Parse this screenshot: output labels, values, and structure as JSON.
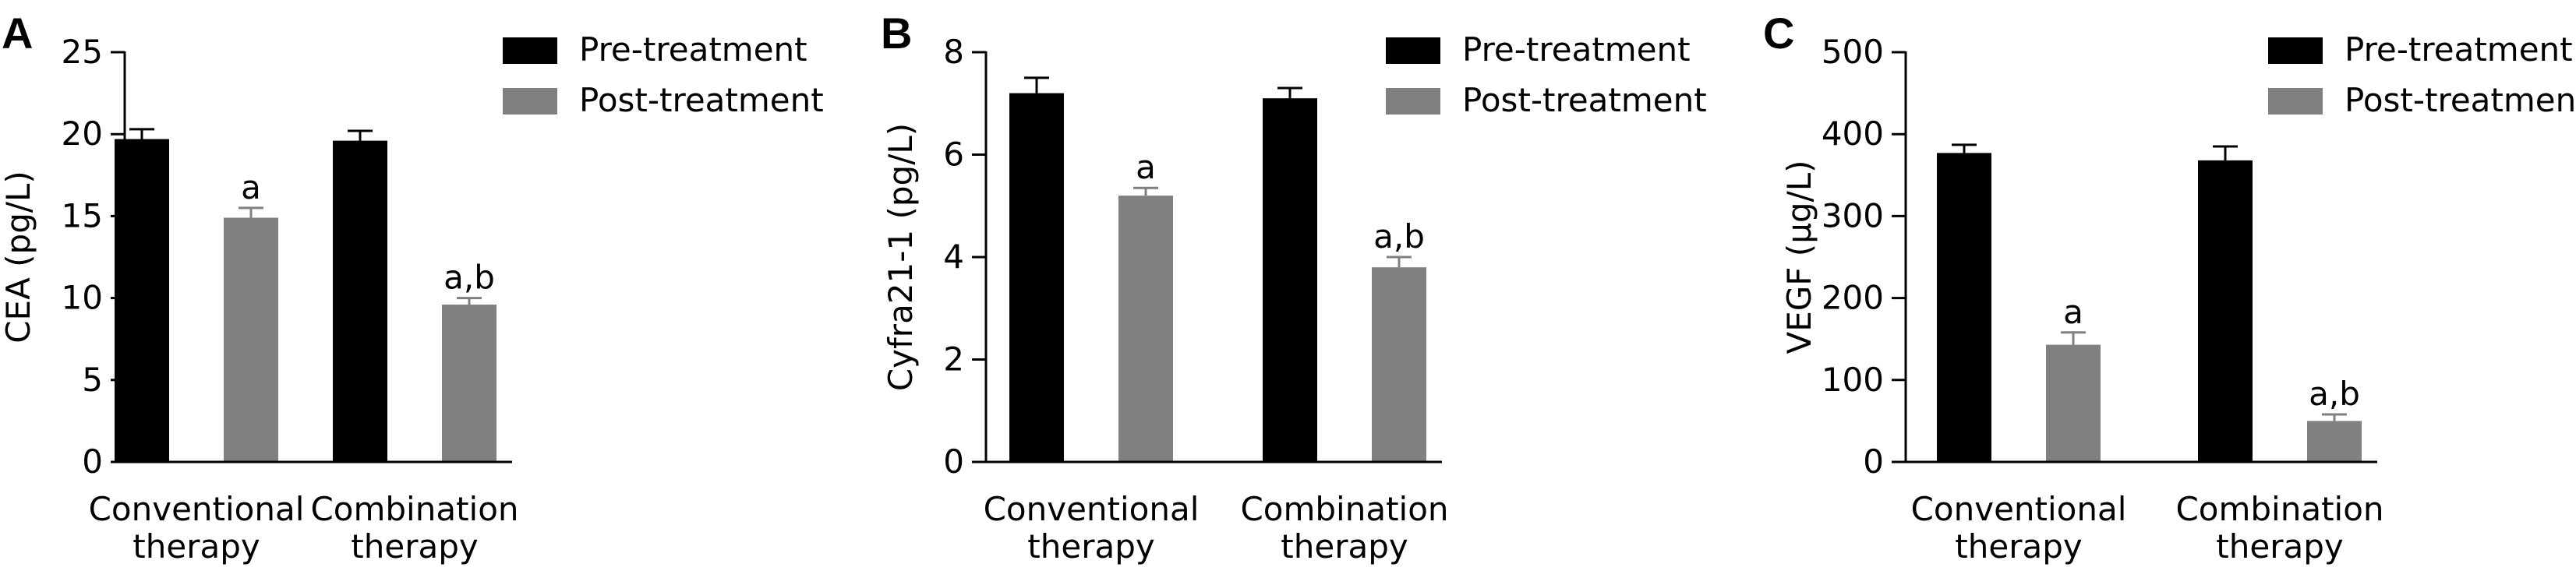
{
  "chart_data": [
    {
      "panel": "A",
      "type": "bar",
      "ylabel": "CEA (pg/L)",
      "ylim": [
        0,
        25
      ],
      "yticks": [
        "0",
        "5",
        "10",
        "15",
        "20",
        "25"
      ],
      "categories": [
        [
          "Conventional",
          "therapy"
        ],
        [
          "Combination",
          "therapy"
        ]
      ],
      "series": [
        {
          "name": "Pre-treatment",
          "color": "#000000",
          "values": [
            19.7,
            19.6
          ],
          "errors": [
            0.6,
            0.6
          ]
        },
        {
          "name": "Post-treatment",
          "color": "#808080",
          "values": [
            14.9,
            9.6
          ],
          "errors": [
            0.6,
            0.4
          ]
        }
      ],
      "annotations": [
        [
          "",
          "a"
        ],
        [
          "",
          "a,b"
        ]
      ],
      "legend": "top-right",
      "grid": false
    },
    {
      "panel": "B",
      "type": "bar",
      "ylabel": "Cyfra21-1 (pg/L)",
      "ylim": [
        0,
        8
      ],
      "yticks": [
        "0",
        "2",
        "4",
        "6",
        "8"
      ],
      "categories": [
        [
          "Conventional",
          "therapy"
        ],
        [
          "Combination",
          "therapy"
        ]
      ],
      "series": [
        {
          "name": "Pre-treatment",
          "color": "#000000",
          "values": [
            7.2,
            7.1
          ],
          "errors": [
            0.3,
            0.2
          ]
        },
        {
          "name": "Post-treatment",
          "color": "#808080",
          "values": [
            5.2,
            3.8
          ],
          "errors": [
            0.15,
            0.2
          ]
        }
      ],
      "annotations": [
        [
          "",
          "a"
        ],
        [
          "",
          "a,b"
        ]
      ],
      "legend": "top-right",
      "grid": false
    },
    {
      "panel": "C",
      "type": "bar",
      "ylabel": "VEGF (μg/L)",
      "ylim": [
        0,
        500
      ],
      "yticks": [
        "0",
        "100",
        "200",
        "300",
        "400",
        "500"
      ],
      "categories": [
        [
          "Conventional",
          "therapy"
        ],
        [
          "Combination",
          "therapy"
        ]
      ],
      "series": [
        {
          "name": "Pre-treatment",
          "color": "#000000",
          "values": [
            377,
            368
          ],
          "errors": [
            10,
            17
          ]
        },
        {
          "name": "Post-treatment",
          "color": "#808080",
          "values": [
            143,
            50
          ],
          "errors": [
            15,
            8
          ]
        }
      ],
      "annotations": [
        [
          "",
          "a"
        ],
        [
          "",
          "a,b"
        ]
      ],
      "legend": "top-right",
      "grid": false
    }
  ]
}
